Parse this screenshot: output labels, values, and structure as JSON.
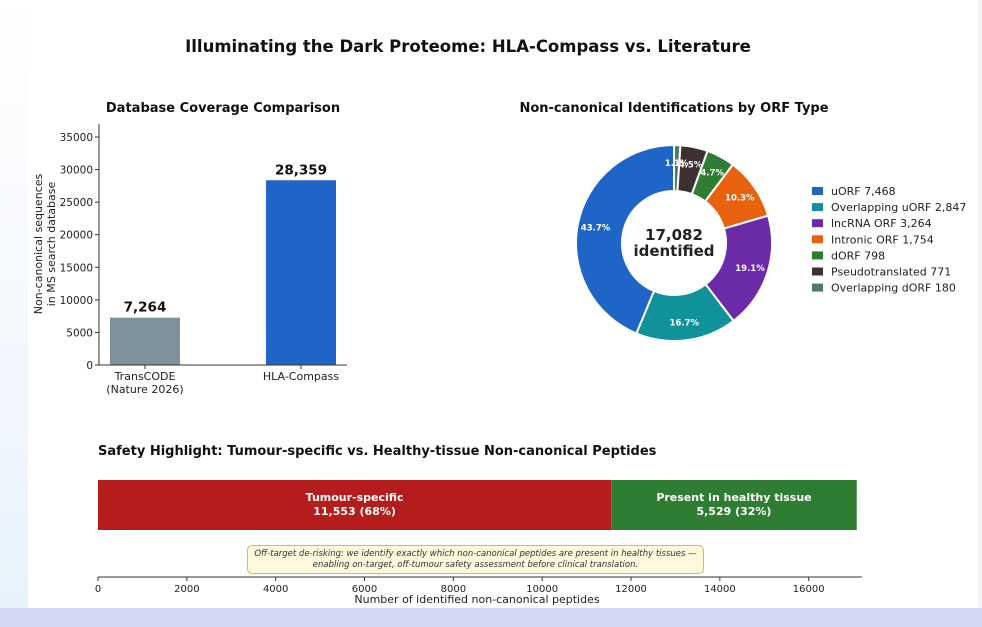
{
  "figure_title": "Illuminating the Dark Proteome: HLA-Compass vs. Literature",
  "chart_data": [
    {
      "type": "bar",
      "title": "Database Coverage Comparison",
      "ylabel_lines": [
        "Non-canonical sequences",
        "in MS search database"
      ],
      "categories": [
        "TransCODE\n(Nature 2026)",
        "HLA-Compass"
      ],
      "category_lines": [
        [
          "TransCODE",
          "(Nature 2026)"
        ],
        [
          "HLA-Compass"
        ]
      ],
      "values": [
        7264,
        28359
      ],
      "value_labels": [
        "7,264",
        "28,359"
      ],
      "colors": [
        "#7f929c",
        "#1f65c8"
      ],
      "ylim": [
        0,
        37000
      ],
      "yticks": [
        0,
        5000,
        10000,
        15000,
        20000,
        25000,
        30000,
        35000
      ]
    },
    {
      "type": "pie",
      "title": "Non-canonical Identifications by ORF Type",
      "center_label": [
        "17,082",
        "identified"
      ],
      "slices": [
        {
          "name": "uORF",
          "value": 7468,
          "value_label": "7,468",
          "pct_label": "43.7%",
          "color": "#1f65c8"
        },
        {
          "name": "Overlapping uORF",
          "value": 2847,
          "value_label": "2,847",
          "pct_label": "16.7%",
          "color": "#11929b"
        },
        {
          "name": "lncRNA ORF",
          "value": 3264,
          "value_label": "3,264",
          "pct_label": "19.1%",
          "color": "#6b2aa8"
        },
        {
          "name": "Intronic ORF",
          "value": 1754,
          "value_label": "1,754",
          "pct_label": "10.3%",
          "color": "#e8620e"
        },
        {
          "name": "dORF",
          "value": 798,
          "value_label": "798",
          "pct_label": "4.7%",
          "color": "#2e7d32"
        },
        {
          "name": "Pseudotranslated",
          "value": 771,
          "value_label": "771",
          "pct_label": "4.5%",
          "color": "#3d3030"
        },
        {
          "name": "Overlapping dORF",
          "value": 180,
          "value_label": "180",
          "pct_label": "1.1%",
          "color": "#4e7a72"
        }
      ],
      "legend_position": "right"
    },
    {
      "type": "bar",
      "orientation": "horizontal-stacked",
      "title": "Safety Highlight: Tumour-specific vs. Healthy-tissue Non-canonical Peptides",
      "xlabel": "Number of identified non-canonical peptides",
      "xlim": [
        0,
        17200
      ],
      "xticks": [
        0,
        2000,
        4000,
        6000,
        8000,
        10000,
        12000,
        14000,
        16000
      ],
      "segments": [
        {
          "name": "Tumour-specific",
          "value": 11553,
          "value_label": "11,553  (68%)",
          "color": "#b51c1c"
        },
        {
          "name": "Present in healthy tissue",
          "value": 5529,
          "value_label": "5,529  (32%)",
          "color": "#2e7d32"
        }
      ],
      "annotation": "Off-target de-risking: we identify exactly which non-canonical peptides are present in healthy tissues — enabling on-target, off-tumour safety assessment before clinical translation."
    }
  ]
}
